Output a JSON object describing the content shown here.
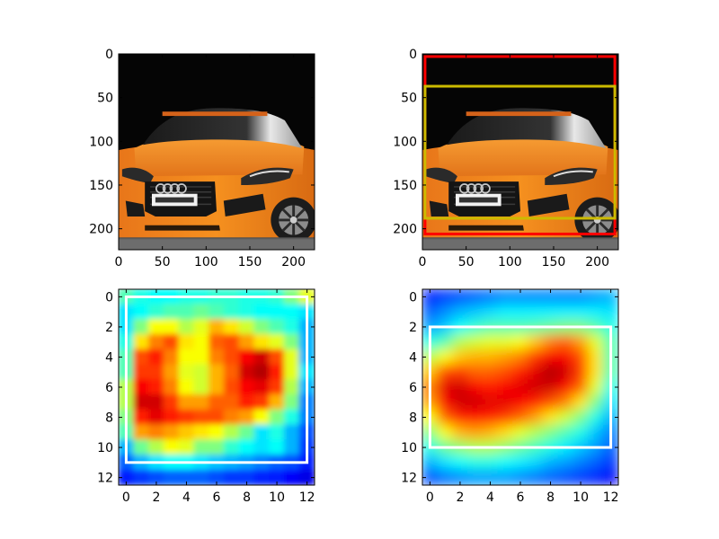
{
  "chart_data": [
    {
      "type": "image",
      "panel": "top-left",
      "content": "orange car photo",
      "x_range": [
        0,
        224
      ],
      "y_range": [
        0,
        224
      ],
      "x_ticks": [
        0,
        50,
        100,
        150,
        200
      ],
      "y_ticks": [
        0,
        50,
        100,
        150,
        200
      ],
      "x_tick_labels": [
        "0",
        "50",
        "100",
        "150",
        "200"
      ],
      "y_tick_labels": [
        "0",
        "50",
        "100",
        "150",
        "200"
      ],
      "boxes": []
    },
    {
      "type": "image",
      "panel": "top-right",
      "content": "orange car photo with bounding boxes",
      "x_range": [
        0,
        224
      ],
      "y_range": [
        0,
        224
      ],
      "x_ticks": [
        0,
        50,
        100,
        150,
        200
      ],
      "y_ticks": [
        0,
        50,
        100,
        150,
        200
      ],
      "x_tick_labels": [
        "0",
        "50",
        "100",
        "150",
        "200"
      ],
      "y_tick_labels": [
        "0",
        "50",
        "100",
        "150",
        "200"
      ],
      "boxes": [
        {
          "color": "#ff0000",
          "x0": 3,
          "y0": 3,
          "x1": 220,
          "y1": 206
        },
        {
          "color": "#ccbb00",
          "x0": 3,
          "y0": 37,
          "x1": 220,
          "y1": 188
        }
      ]
    },
    {
      "type": "heatmap",
      "panel": "bottom-left",
      "colormap": "jet",
      "x_range": [
        -0.5,
        12.5
      ],
      "y_range": [
        -0.5,
        12.5
      ],
      "x_ticks": [
        0,
        2,
        4,
        6,
        8,
        10,
        12
      ],
      "y_ticks": [
        0,
        2,
        4,
        6,
        8,
        10,
        12
      ],
      "x_tick_labels": [
        "0",
        "2",
        "4",
        "6",
        "8",
        "10",
        "12"
      ],
      "y_tick_labels": [
        "0",
        "2",
        "4",
        "6",
        "8",
        "10",
        "12"
      ],
      "boxes": [
        {
          "color": "#ffffff",
          "x0": 0,
          "y0": 0,
          "x1": 12,
          "y1": 11
        }
      ],
      "values": [
        [
          0.45,
          0.4,
          0.38,
          0.38,
          0.4,
          0.4,
          0.42,
          0.42,
          0.4,
          0.4,
          0.42,
          0.5,
          0.6
        ],
        [
          0.35,
          0.38,
          0.42,
          0.45,
          0.45,
          0.48,
          0.45,
          0.42,
          0.4,
          0.38,
          0.38,
          0.38,
          0.35
        ],
        [
          0.35,
          0.5,
          0.62,
          0.62,
          0.55,
          0.6,
          0.7,
          0.65,
          0.58,
          0.5,
          0.45,
          0.4,
          0.3
        ],
        [
          0.4,
          0.65,
          0.75,
          0.8,
          0.65,
          0.62,
          0.78,
          0.8,
          0.72,
          0.65,
          0.6,
          0.5,
          0.3
        ],
        [
          0.45,
          0.8,
          0.85,
          0.75,
          0.62,
          0.62,
          0.75,
          0.8,
          0.88,
          0.92,
          0.8,
          0.6,
          0.3
        ],
        [
          0.45,
          0.82,
          0.82,
          0.72,
          0.6,
          0.58,
          0.7,
          0.78,
          0.92,
          0.95,
          0.85,
          0.6,
          0.35
        ],
        [
          0.55,
          0.88,
          0.85,
          0.75,
          0.62,
          0.58,
          0.7,
          0.8,
          0.88,
          0.9,
          0.82,
          0.55,
          0.3
        ],
        [
          0.55,
          0.92,
          0.92,
          0.82,
          0.72,
          0.72,
          0.78,
          0.78,
          0.85,
          0.82,
          0.7,
          0.5,
          0.25
        ],
        [
          0.5,
          0.85,
          0.9,
          0.85,
          0.82,
          0.8,
          0.8,
          0.75,
          0.72,
          0.62,
          0.5,
          0.4,
          0.25
        ],
        [
          0.45,
          0.72,
          0.75,
          0.72,
          0.68,
          0.65,
          0.62,
          0.55,
          0.48,
          0.35,
          0.4,
          0.3,
          0.2
        ],
        [
          0.3,
          0.48,
          0.55,
          0.62,
          0.6,
          0.5,
          0.5,
          0.42,
          0.38,
          0.35,
          0.38,
          0.3,
          0.18
        ],
        [
          0.22,
          0.3,
          0.35,
          0.38,
          0.38,
          0.35,
          0.32,
          0.3,
          0.28,
          0.25,
          0.22,
          0.2,
          0.15
        ],
        [
          0.15,
          0.18,
          0.2,
          0.22,
          0.22,
          0.22,
          0.2,
          0.18,
          0.18,
          0.16,
          0.15,
          0.12,
          0.1
        ]
      ]
    },
    {
      "type": "heatmap",
      "panel": "bottom-right",
      "colormap": "jet",
      "x_range": [
        -0.5,
        12.5
      ],
      "y_range": [
        -0.5,
        12.5
      ],
      "x_ticks": [
        0,
        2,
        4,
        6,
        8,
        10,
        12
      ],
      "y_ticks": [
        0,
        2,
        4,
        6,
        8,
        10,
        12
      ],
      "x_tick_labels": [
        "0",
        "2",
        "4",
        "6",
        "8",
        "10",
        "12"
      ],
      "y_tick_labels": [
        "0",
        "2",
        "4",
        "6",
        "8",
        "10",
        "12"
      ],
      "boxes": [
        {
          "color": "#ffffff",
          "x0": 0,
          "y0": 2,
          "x1": 12,
          "y1": 10
        }
      ],
      "values": [
        [
          0.15,
          0.18,
          0.2,
          0.22,
          0.24,
          0.26,
          0.26,
          0.26,
          0.26,
          0.26,
          0.26,
          0.28,
          0.3
        ],
        [
          0.22,
          0.26,
          0.3,
          0.32,
          0.34,
          0.36,
          0.36,
          0.36,
          0.36,
          0.36,
          0.36,
          0.36,
          0.35
        ],
        [
          0.28,
          0.32,
          0.38,
          0.42,
          0.45,
          0.45,
          0.45,
          0.46,
          0.48,
          0.5,
          0.5,
          0.46,
          0.4
        ],
        [
          0.4,
          0.45,
          0.55,
          0.58,
          0.6,
          0.6,
          0.62,
          0.68,
          0.75,
          0.78,
          0.72,
          0.6,
          0.45
        ],
        [
          0.55,
          0.62,
          0.68,
          0.7,
          0.7,
          0.72,
          0.75,
          0.82,
          0.88,
          0.88,
          0.8,
          0.65,
          0.45
        ],
        [
          0.68,
          0.8,
          0.82,
          0.78,
          0.78,
          0.8,
          0.85,
          0.9,
          0.95,
          0.92,
          0.82,
          0.65,
          0.45
        ],
        [
          0.75,
          0.9,
          0.92,
          0.88,
          0.85,
          0.88,
          0.9,
          0.92,
          0.92,
          0.88,
          0.78,
          0.6,
          0.4
        ],
        [
          0.72,
          0.88,
          0.92,
          0.92,
          0.9,
          0.9,
          0.88,
          0.85,
          0.8,
          0.75,
          0.65,
          0.5,
          0.35
        ],
        [
          0.62,
          0.78,
          0.85,
          0.86,
          0.85,
          0.82,
          0.78,
          0.72,
          0.65,
          0.58,
          0.5,
          0.4,
          0.3
        ],
        [
          0.5,
          0.62,
          0.7,
          0.72,
          0.7,
          0.66,
          0.6,
          0.55,
          0.5,
          0.45,
          0.4,
          0.32,
          0.25
        ],
        [
          0.4,
          0.48,
          0.52,
          0.55,
          0.55,
          0.52,
          0.48,
          0.44,
          0.4,
          0.36,
          0.32,
          0.28,
          0.22
        ],
        [
          0.3,
          0.35,
          0.38,
          0.4,
          0.4,
          0.38,
          0.36,
          0.34,
          0.3,
          0.28,
          0.25,
          0.22,
          0.18
        ],
        [
          0.2,
          0.24,
          0.26,
          0.28,
          0.28,
          0.28,
          0.26,
          0.24,
          0.22,
          0.2,
          0.18,
          0.16,
          0.12
        ]
      ]
    }
  ]
}
